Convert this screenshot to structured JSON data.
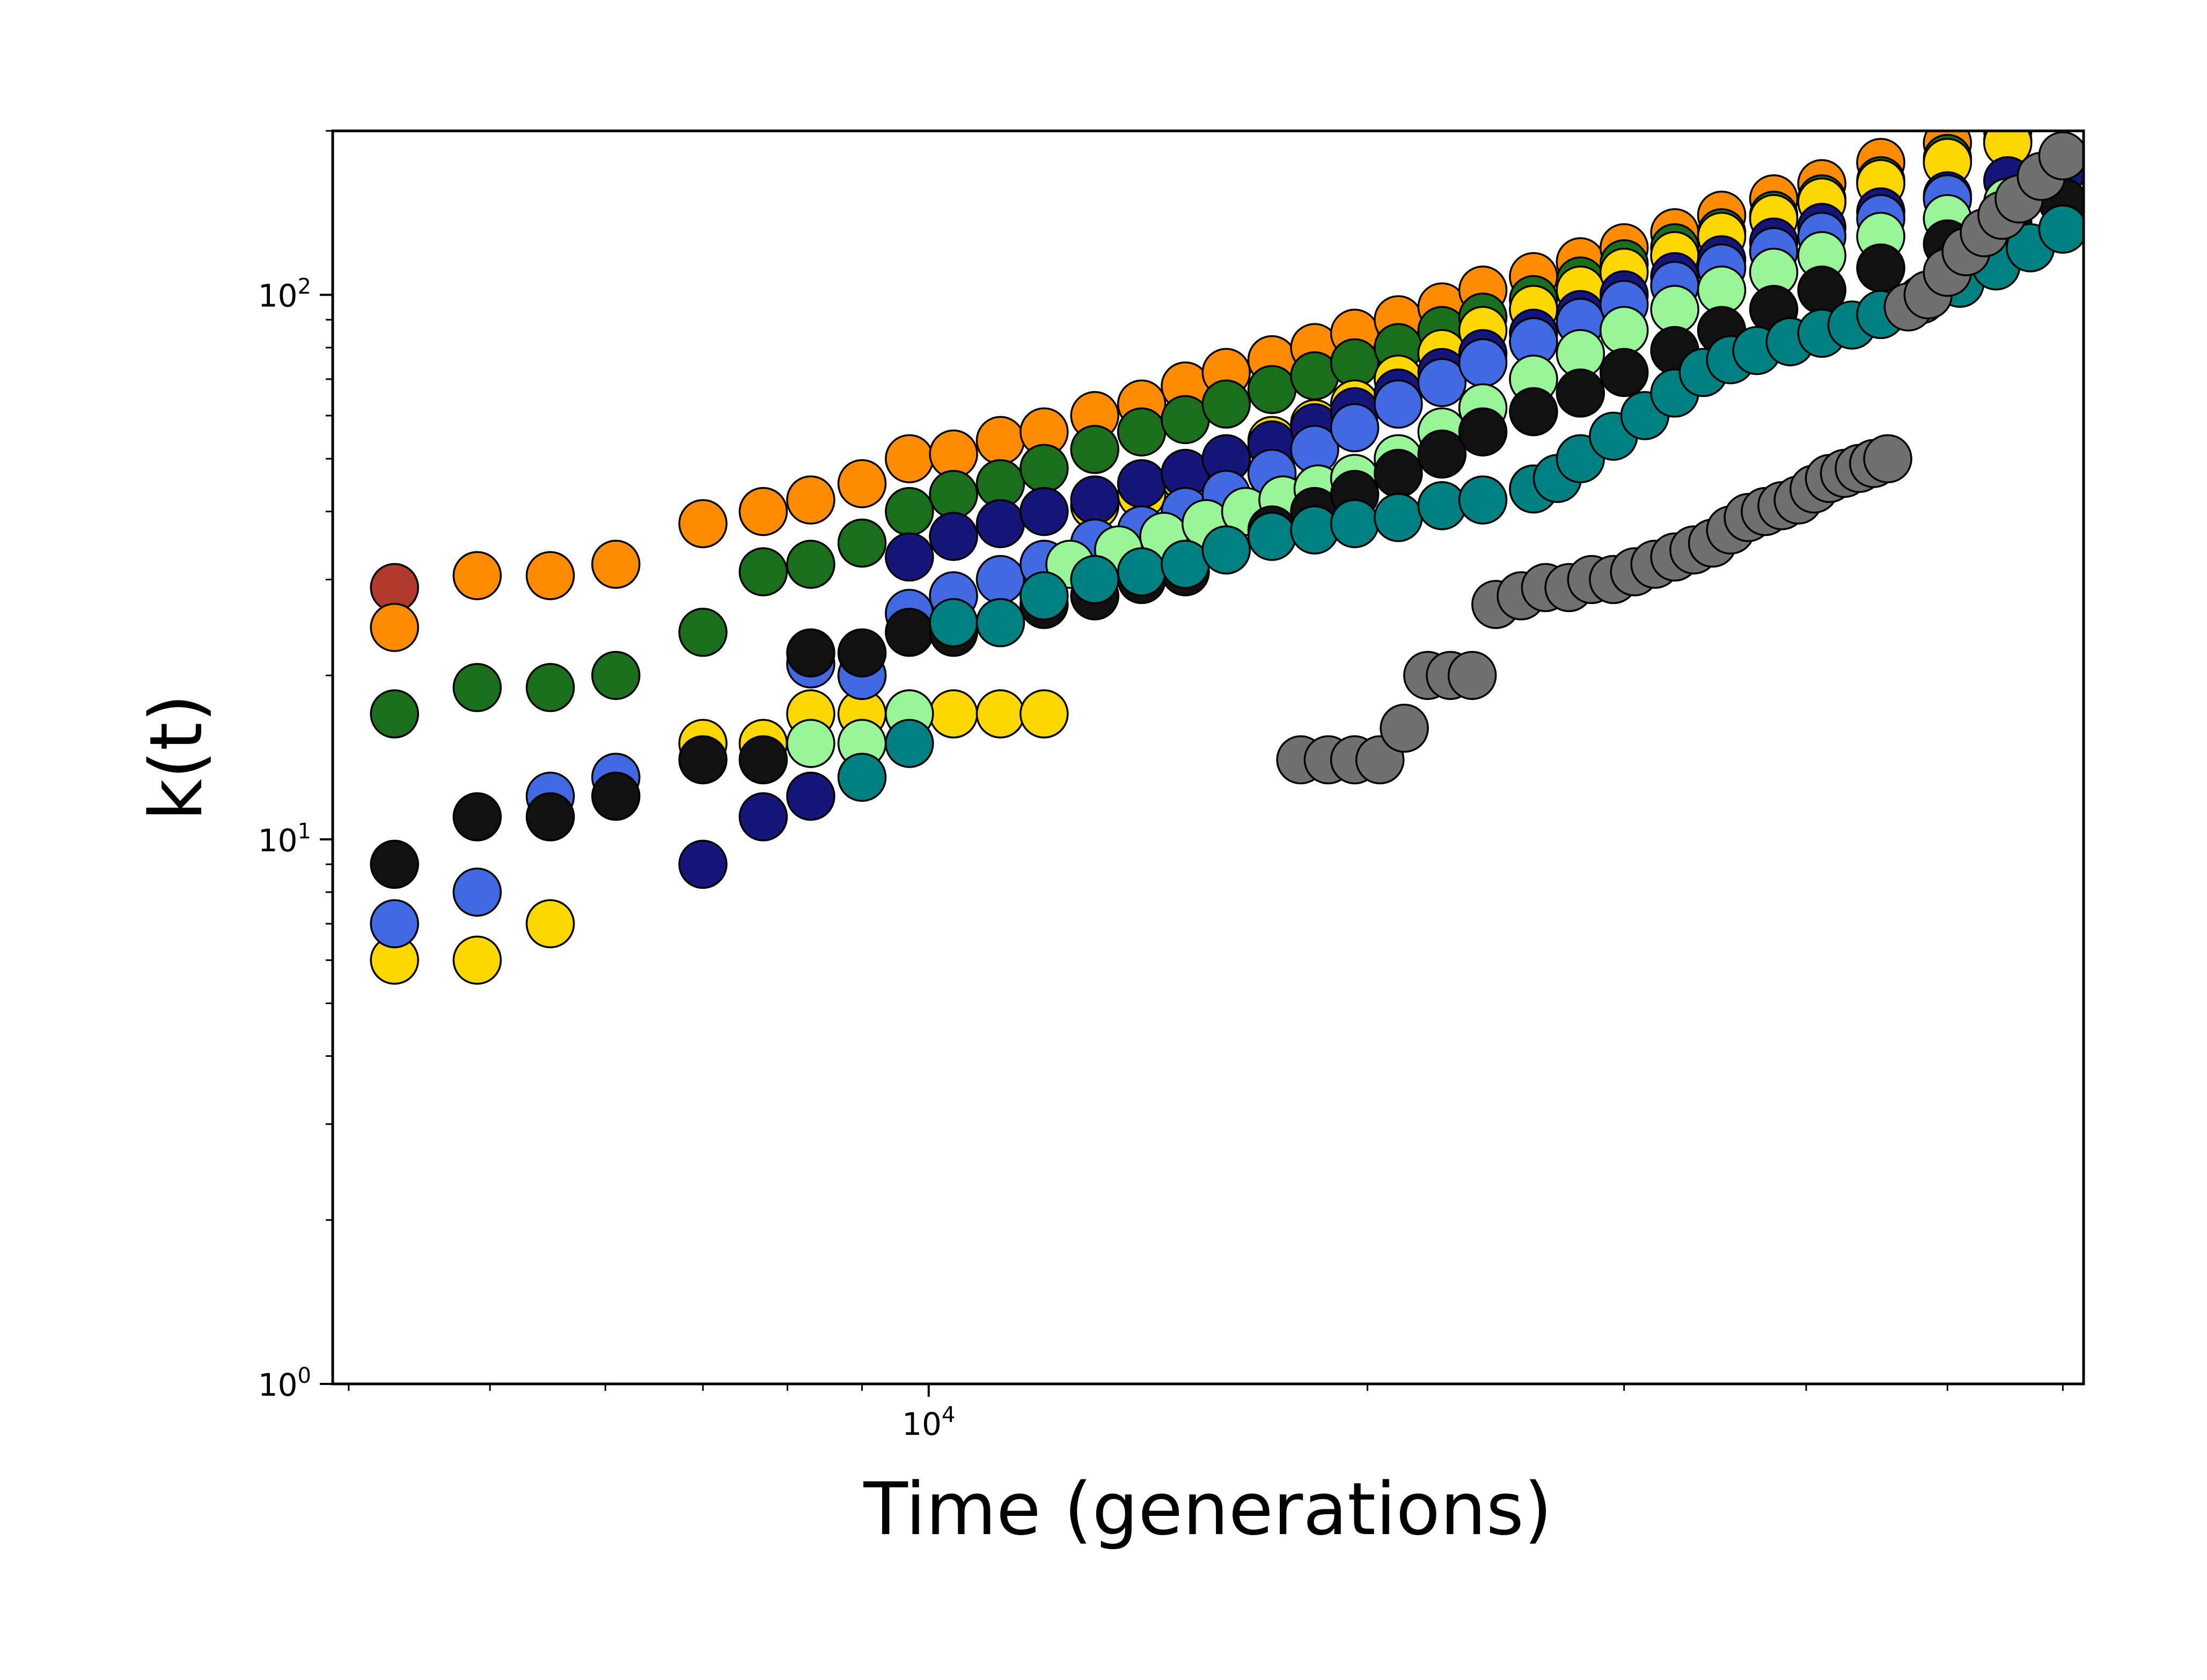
{
  "chart_data": {
    "type": "scatter",
    "xlabel": "Time (generations)",
    "ylabel": "k(t)",
    "xscale": "log",
    "yscale": "log",
    "xlim": [
      3900,
      62000
    ],
    "ylim": [
      1,
      200
    ],
    "x_major_ticks": [
      {
        "value": 10000,
        "base": "10",
        "exp": "4"
      }
    ],
    "y_major_ticks": [
      {
        "value": 1,
        "base": "10",
        "exp": "0"
      },
      {
        "value": 10,
        "base": "10",
        "exp": "1"
      },
      {
        "value": 100,
        "base": "10",
        "exp": "2"
      }
    ],
    "grid": false,
    "legend": "none",
    "series": [
      {
        "color": "#b03a2e",
        "points": [
          [
            4300,
            29
          ]
        ]
      },
      {
        "color": "#ff8c00",
        "points": [
          [
            4300,
            24.5
          ],
          [
            4900,
            30.5
          ],
          [
            5500,
            30.5
          ],
          [
            6100,
            32
          ],
          [
            7000,
            38
          ],
          [
            7700,
            40
          ],
          [
            8300,
            42
          ],
          [
            9000,
            45
          ],
          [
            9700,
            50
          ],
          [
            10400,
            51
          ],
          [
            11200,
            54
          ],
          [
            12000,
            56
          ],
          [
            13000,
            60
          ],
          [
            14000,
            63
          ],
          [
            15000,
            68
          ],
          [
            16000,
            72
          ],
          [
            17200,
            76
          ],
          [
            18400,
            80
          ],
          [
            19600,
            85
          ],
          [
            21000,
            90
          ],
          [
            22500,
            95
          ],
          [
            24000,
            102
          ],
          [
            26000,
            108
          ],
          [
            28000,
            115
          ],
          [
            30000,
            122
          ],
          [
            32500,
            130
          ],
          [
            35000,
            140
          ],
          [
            38000,
            150
          ],
          [
            41000,
            160
          ],
          [
            45000,
            175
          ],
          [
            50000,
            190
          ],
          [
            55000,
            200
          ]
        ]
      },
      {
        "color": "#1b6e1b",
        "points": [
          [
            4300,
            17
          ],
          [
            4900,
            19
          ],
          [
            5500,
            19
          ],
          [
            6100,
            20
          ],
          [
            7000,
            24
          ],
          [
            7700,
            31
          ],
          [
            8300,
            32
          ],
          [
            9000,
            35
          ],
          [
            9700,
            40
          ],
          [
            10400,
            43
          ],
          [
            11200,
            45
          ],
          [
            12000,
            48
          ],
          [
            13000,
            52
          ],
          [
            14000,
            56
          ],
          [
            15000,
            59
          ],
          [
            16000,
            63
          ],
          [
            17200,
            67
          ],
          [
            18400,
            71
          ],
          [
            19600,
            75
          ],
          [
            21000,
            80
          ],
          [
            22500,
            86
          ],
          [
            24000,
            91
          ],
          [
            26000,
            98
          ],
          [
            28000,
            106
          ],
          [
            30000,
            114
          ],
          [
            32500,
            122
          ],
          [
            35000,
            130
          ],
          [
            38000,
            140
          ],
          [
            41000,
            150
          ],
          [
            45000,
            162
          ],
          [
            50000,
            178
          ],
          [
            55000,
            192
          ]
        ]
      },
      {
        "color": "#ffd700",
        "points": [
          [
            4300,
            6
          ],
          [
            4900,
            6
          ],
          [
            5500,
            7
          ],
          [
            7000,
            15
          ],
          [
            7700,
            15
          ],
          [
            8300,
            17
          ],
          [
            9000,
            17
          ],
          [
            9700,
            17
          ],
          [
            10400,
            17
          ],
          [
            11200,
            17
          ],
          [
            12000,
            17
          ],
          [
            13000,
            41
          ],
          [
            14000,
            43
          ],
          [
            15000,
            46
          ],
          [
            16000,
            50
          ],
          [
            17200,
            54
          ],
          [
            18400,
            58
          ],
          [
            19600,
            63
          ],
          [
            21000,
            70
          ],
          [
            22500,
            78
          ],
          [
            24000,
            86
          ],
          [
            26000,
            94
          ],
          [
            28000,
            102
          ],
          [
            30000,
            110
          ],
          [
            32500,
            118
          ],
          [
            35000,
            128
          ],
          [
            38000,
            138
          ],
          [
            41000,
            148
          ],
          [
            45000,
            160
          ],
          [
            50000,
            175
          ],
          [
            55000,
            190
          ]
        ]
      },
      {
        "color": "#16167a",
        "points": [
          [
            7000,
            9
          ],
          [
            7700,
            11
          ],
          [
            8300,
            12
          ],
          [
            9000,
            20
          ],
          [
            9700,
            33
          ],
          [
            10400,
            36
          ],
          [
            11200,
            38
          ],
          [
            12000,
            40
          ],
          [
            13000,
            42
          ],
          [
            14000,
            45
          ],
          [
            15000,
            47
          ],
          [
            16000,
            50
          ],
          [
            17200,
            53
          ],
          [
            18400,
            57
          ],
          [
            19600,
            61
          ],
          [
            21000,
            66
          ],
          [
            22500,
            72
          ],
          [
            24000,
            78
          ],
          [
            26000,
            85
          ],
          [
            28000,
            92
          ],
          [
            30000,
            100
          ],
          [
            32500,
            108
          ],
          [
            35000,
            116
          ],
          [
            38000,
            125
          ],
          [
            41000,
            133
          ],
          [
            45000,
            142
          ],
          [
            50000,
            152
          ],
          [
            55000,
            162
          ],
          [
            60000,
            170
          ]
        ]
      },
      {
        "color": "#4169e1",
        "points": [
          [
            4300,
            7
          ],
          [
            4900,
            8
          ],
          [
            5500,
            12
          ],
          [
            6100,
            13
          ],
          [
            8300,
            21
          ],
          [
            9000,
            20
          ],
          [
            9700,
            26
          ],
          [
            10400,
            28
          ],
          [
            11200,
            30
          ],
          [
            12000,
            32
          ],
          [
            13000,
            35
          ],
          [
            14000,
            37
          ],
          [
            15000,
            40
          ],
          [
            16000,
            43
          ],
          [
            17200,
            47
          ],
          [
            18400,
            52
          ],
          [
            19600,
            57
          ],
          [
            21000,
            63
          ],
          [
            22500,
            69
          ],
          [
            24000,
            75
          ],
          [
            26000,
            82
          ],
          [
            28000,
            89
          ],
          [
            30000,
            96
          ],
          [
            32500,
            104
          ],
          [
            35000,
            112
          ],
          [
            38000,
            120
          ],
          [
            41000,
            128
          ],
          [
            45000,
            138
          ],
          [
            50000,
            150
          ]
        ]
      },
      {
        "color": "#98f598",
        "points": [
          [
            8300,
            15
          ],
          [
            9000,
            15
          ],
          [
            9700,
            17
          ],
          [
            12500,
            32
          ],
          [
            13500,
            34
          ],
          [
            14500,
            36
          ],
          [
            15500,
            38
          ],
          [
            16500,
            40
          ],
          [
            17500,
            42
          ],
          [
            18500,
            44
          ],
          [
            19600,
            46
          ],
          [
            21000,
            50
          ],
          [
            22500,
            56
          ],
          [
            24000,
            62
          ],
          [
            26000,
            70
          ],
          [
            28000,
            78
          ],
          [
            30000,
            86
          ],
          [
            32500,
            94
          ],
          [
            35000,
            102
          ],
          [
            38000,
            110
          ],
          [
            41000,
            118
          ],
          [
            45000,
            128
          ],
          [
            50000,
            138
          ],
          [
            55000,
            148
          ]
        ]
      },
      {
        "color": "#111111",
        "points": [
          [
            4300,
            9
          ],
          [
            4900,
            11
          ],
          [
            5500,
            11
          ],
          [
            6100,
            12
          ],
          [
            7000,
            14
          ],
          [
            7700,
            14
          ],
          [
            8300,
            22
          ],
          [
            9000,
            22
          ],
          [
            9700,
            24
          ],
          [
            10400,
            24
          ],
          [
            11200,
            25
          ],
          [
            12000,
            27
          ],
          [
            13000,
            28
          ],
          [
            14000,
            30
          ],
          [
            15000,
            31
          ],
          [
            16000,
            34
          ],
          [
            17200,
            37
          ],
          [
            18400,
            40
          ],
          [
            19600,
            43
          ],
          [
            21000,
            47
          ],
          [
            22500,
            51
          ],
          [
            24000,
            56
          ],
          [
            26000,
            61
          ],
          [
            28000,
            66
          ],
          [
            30000,
            72
          ],
          [
            32500,
            79
          ],
          [
            35000,
            86
          ],
          [
            38000,
            94
          ],
          [
            41000,
            102
          ],
          [
            45000,
            112
          ],
          [
            50000,
            124
          ],
          [
            55000,
            136
          ],
          [
            60000,
            148
          ]
        ]
      },
      {
        "color": "#008080",
        "points": [
          [
            9000,
            13
          ],
          [
            9700,
            15
          ],
          [
            10400,
            25
          ],
          [
            11200,
            25
          ],
          [
            12000,
            28
          ],
          [
            13000,
            30
          ],
          [
            14000,
            31
          ],
          [
            15000,
            32
          ],
          [
            16000,
            34
          ],
          [
            17200,
            36
          ],
          [
            18400,
            37
          ],
          [
            19600,
            38
          ],
          [
            21000,
            39
          ],
          [
            22500,
            41
          ],
          [
            24000,
            42
          ],
          [
            26000,
            44
          ],
          [
            27000,
            46
          ],
          [
            28000,
            50
          ],
          [
            29500,
            55
          ],
          [
            31000,
            60
          ],
          [
            32500,
            66
          ],
          [
            34000,
            72
          ],
          [
            35500,
            76
          ],
          [
            37000,
            79
          ],
          [
            39000,
            82
          ],
          [
            41000,
            85
          ],
          [
            43000,
            88
          ],
          [
            45000,
            92
          ],
          [
            48000,
            98
          ],
          [
            51000,
            105
          ],
          [
            54000,
            113
          ],
          [
            57000,
            122
          ],
          [
            60000,
            132
          ]
        ]
      },
      {
        "color": "#707070",
        "points": [
          [
            18000,
            14
          ],
          [
            18800,
            14
          ],
          [
            19600,
            14
          ],
          [
            20400,
            14
          ],
          [
            21200,
            16
          ],
          [
            22000,
            20
          ],
          [
            22800,
            20
          ],
          [
            23600,
            20
          ],
          [
            24500,
            27
          ],
          [
            25500,
            28
          ],
          [
            26500,
            29
          ],
          [
            27500,
            29
          ],
          [
            28500,
            30
          ],
          [
            29500,
            30
          ],
          [
            30500,
            31
          ],
          [
            31500,
            32
          ],
          [
            32500,
            33
          ],
          [
            33500,
            34
          ],
          [
            34500,
            35
          ],
          [
            35500,
            37
          ],
          [
            36500,
            39
          ],
          [
            37500,
            40
          ],
          [
            38500,
            41
          ],
          [
            39500,
            42
          ],
          [
            40500,
            44
          ],
          [
            41500,
            46
          ],
          [
            42500,
            47
          ],
          [
            43500,
            48
          ],
          [
            44500,
            49
          ],
          [
            45500,
            50
          ],
          [
            47000,
            95
          ],
          [
            48500,
            100
          ],
          [
            50000,
            110
          ],
          [
            51500,
            120
          ],
          [
            53000,
            130
          ],
          [
            54500,
            140
          ],
          [
            56000,
            150
          ],
          [
            58000,
            165
          ],
          [
            60000,
            180
          ]
        ]
      }
    ]
  }
}
